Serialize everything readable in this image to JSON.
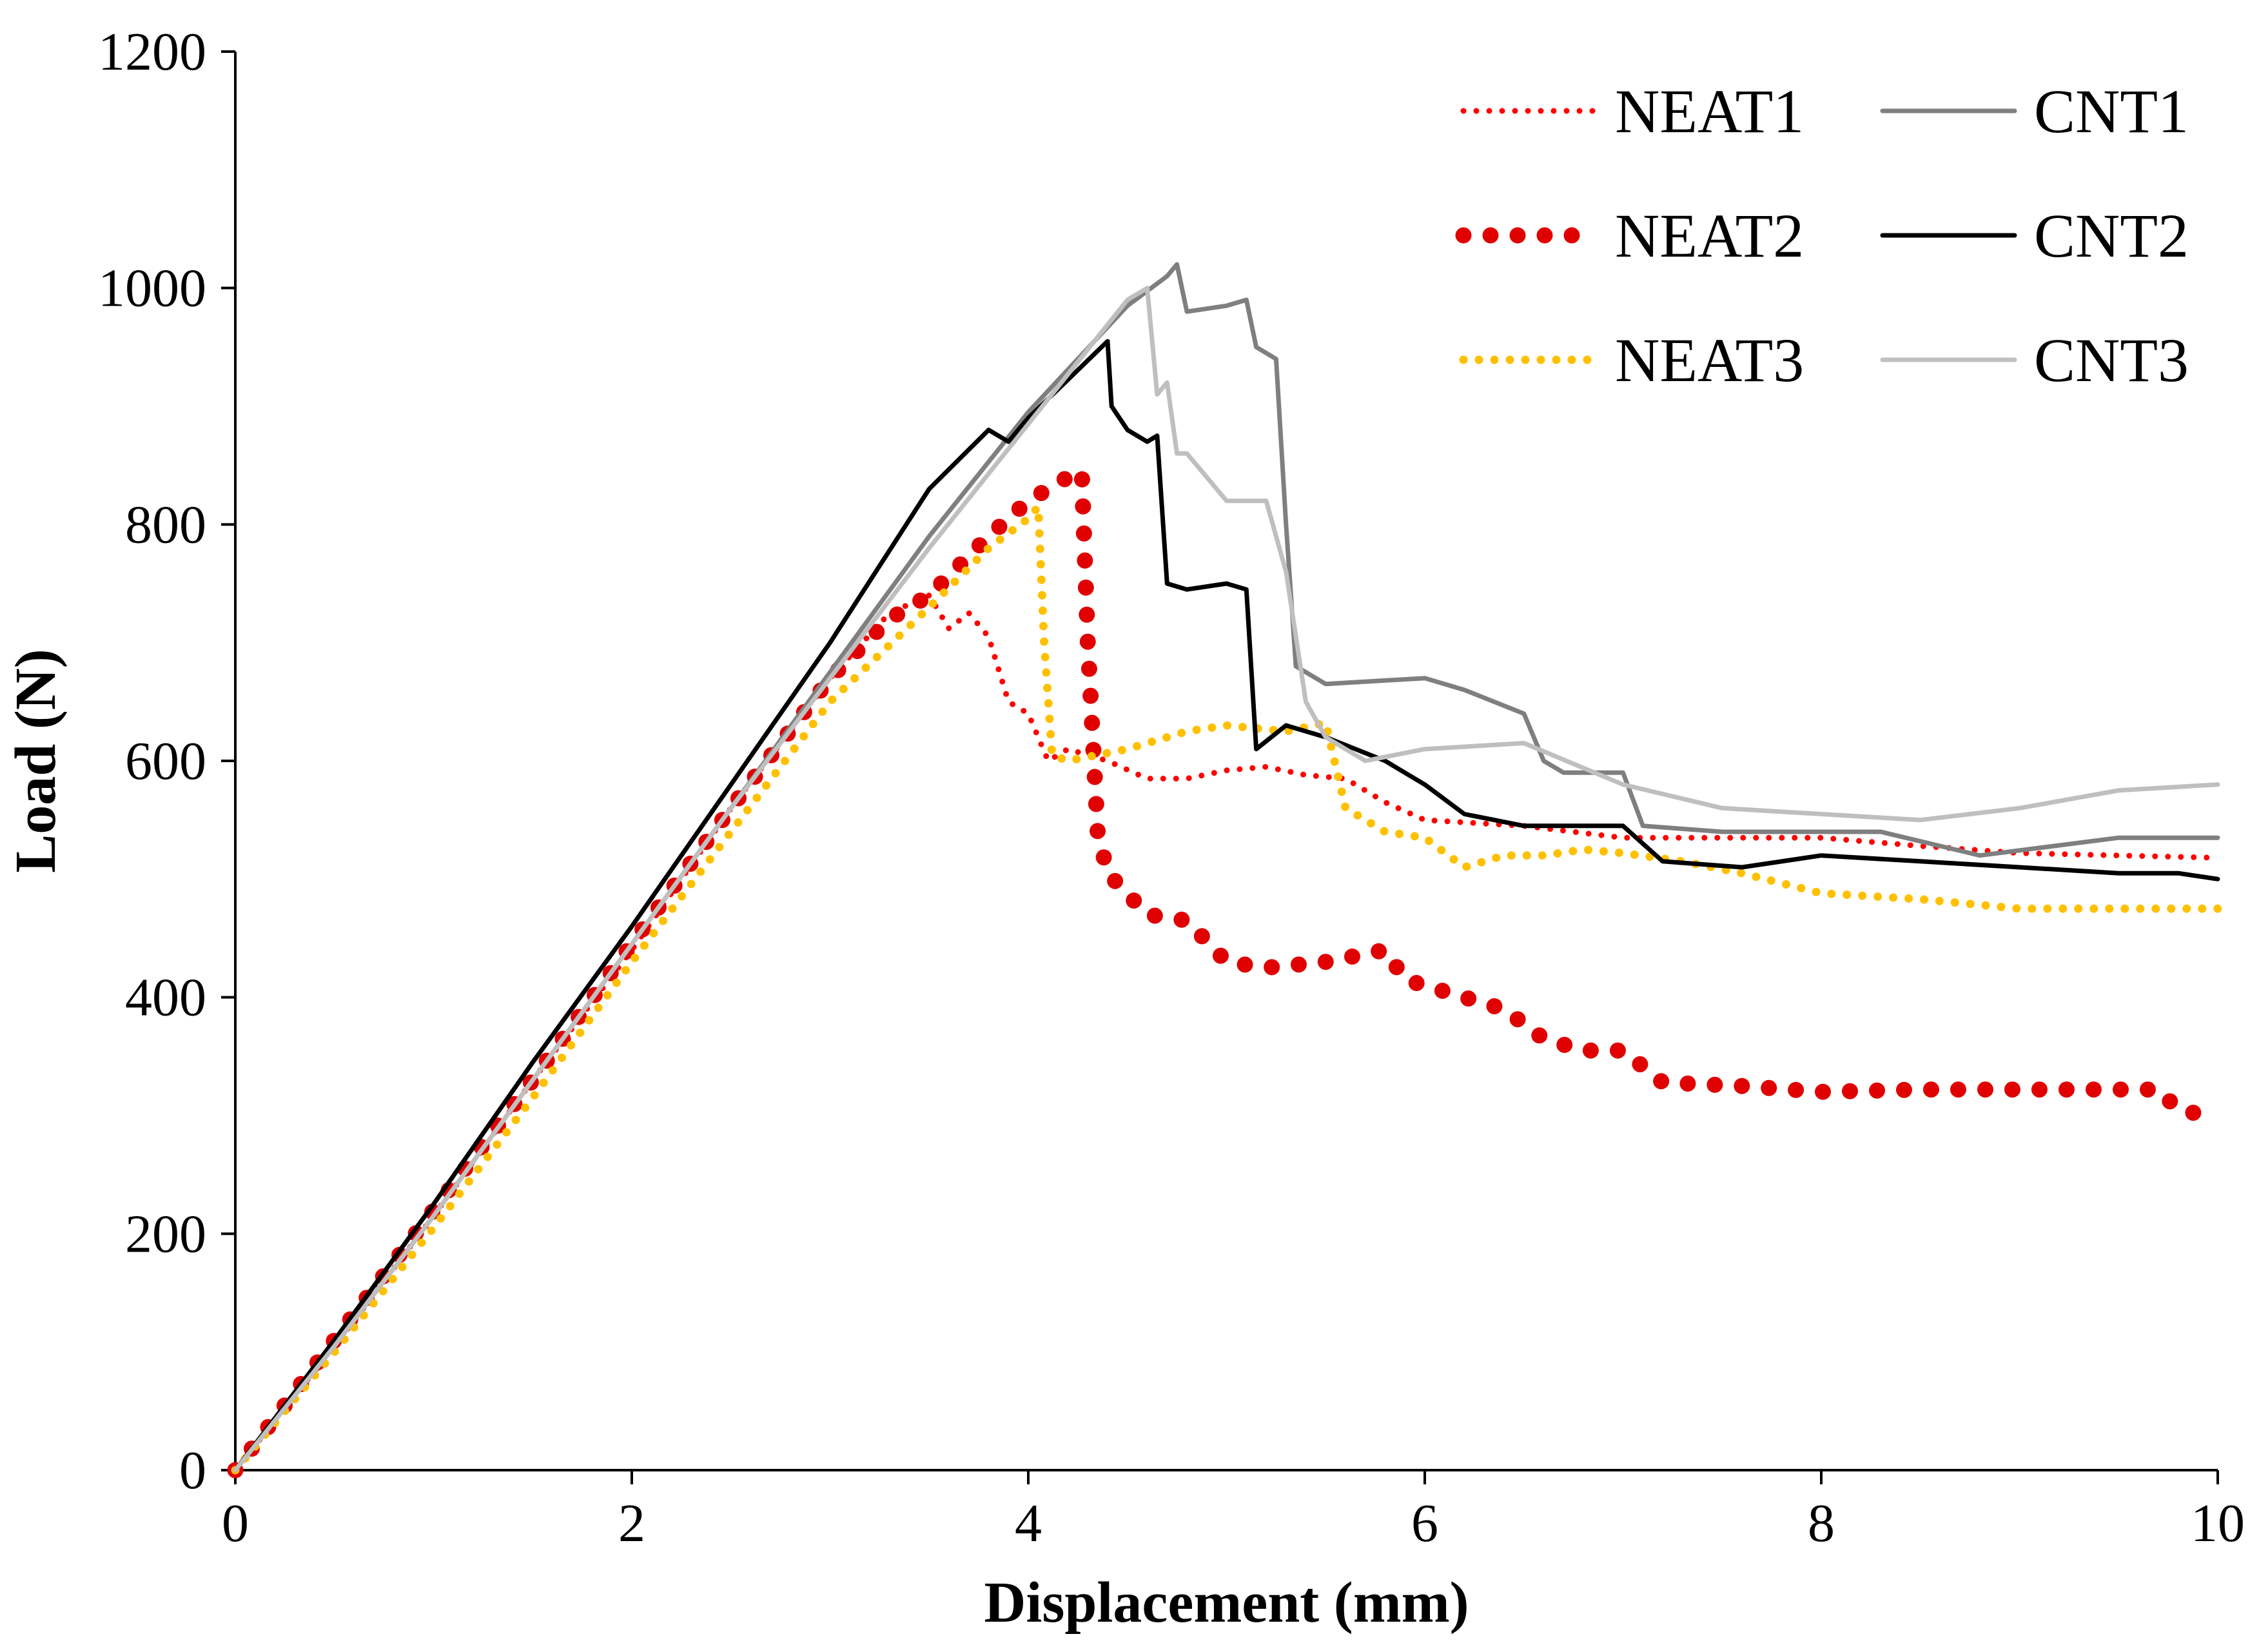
{
  "chart_data": {
    "type": "line",
    "title": "",
    "xlabel": "Displacement (mm)",
    "ylabel": "Load (N)",
    "xlim": [
      0,
      10
    ],
    "ylim": [
      0,
      1200
    ],
    "xticks": [
      0,
      2,
      4,
      6,
      8,
      10
    ],
    "yticks": [
      0,
      200,
      400,
      600,
      800,
      1000,
      1200
    ],
    "grid": false,
    "legend_position": "top-right",
    "series": [
      {
        "name": "NEAT1",
        "color": "#ff0000",
        "style": "dot-small",
        "x": [
          0,
          0.5,
          1,
          1.5,
          2,
          2.5,
          3,
          3.3,
          3.5,
          3.6,
          3.7,
          3.8,
          3.9,
          4.0,
          4.1,
          4.2,
          4.4,
          4.6,
          4.8,
          5.0,
          5.2,
          5.4,
          5.6,
          5.8,
          6.0,
          6.5,
          7.0,
          7.5,
          8.0,
          8.5,
          9.0,
          9.5,
          10.0
        ],
        "y": [
          0,
          105,
          215,
          330,
          440,
          560,
          670,
          725,
          740,
          712,
          725,
          705,
          650,
          640,
          600,
          610,
          600,
          585,
          585,
          592,
          595,
          588,
          585,
          565,
          550,
          545,
          535,
          535,
          535,
          528,
          522,
          520,
          518
        ]
      },
      {
        "name": "NEAT2",
        "color": "#e00000",
        "style": "dot-large",
        "x": [
          0,
          0.5,
          1,
          1.5,
          2,
          2.5,
          3,
          3.3,
          3.5,
          3.8,
          4.0,
          4.2,
          4.27,
          4.3,
          4.35,
          4.4,
          4.6,
          4.8,
          5.0,
          5.2,
          5.5,
          5.8,
          5.9,
          6.2,
          6.4,
          6.6,
          6.8,
          7.0,
          7.2,
          7.6,
          8.0,
          8.5,
          9.0,
          9.7,
          9.8,
          10.0
        ],
        "y": [
          0,
          110,
          220,
          330,
          445,
          560,
          670,
          720,
          740,
          790,
          820,
          840,
          845,
          700,
          540,
          505,
          470,
          465,
          430,
          425,
          430,
          440,
          415,
          400,
          390,
          365,
          355,
          355,
          328,
          325,
          320,
          322,
          322,
          322,
          305,
          298
        ]
      },
      {
        "name": "NEAT3",
        "color": "#ffc000",
        "style": "dot-medium",
        "x": [
          0,
          0.5,
          1,
          1.5,
          2,
          2.5,
          3,
          3.5,
          3.8,
          4.0,
          4.05,
          4.08,
          4.12,
          4.2,
          4.5,
          4.8,
          5.0,
          5.3,
          5.5,
          5.6,
          5.8,
          6.0,
          6.2,
          6.4,
          6.6,
          6.8,
          7.0,
          7.3,
          7.6,
          8.0,
          8.5,
          9.0,
          9.5,
          10.0
        ],
        "y": [
          0,
          100,
          205,
          315,
          430,
          540,
          650,
          730,
          780,
          805,
          815,
          700,
          605,
          600,
          610,
          625,
          630,
          625,
          632,
          560,
          540,
          535,
          510,
          520,
          520,
          525,
          522,
          515,
          505,
          488,
          483,
          475,
          475,
          475
        ]
      },
      {
        "name": "CNT1",
        "color": "#7f7f7f",
        "style": "solid",
        "x": [
          0,
          0.5,
          1,
          1.5,
          2,
          2.5,
          3,
          3.5,
          4.0,
          4.5,
          4.7,
          4.75,
          4.8,
          5.0,
          5.1,
          5.15,
          5.25,
          5.3,
          5.35,
          5.5,
          6.0,
          6.2,
          6.5,
          6.6,
          6.7,
          7.0,
          7.1,
          7.5,
          8.0,
          8.3,
          8.8,
          9.5,
          10.0
        ],
        "y": [
          0,
          105,
          215,
          330,
          445,
          560,
          675,
          790,
          895,
          985,
          1010,
          1020,
          980,
          985,
          990,
          950,
          940,
          800,
          680,
          665,
          670,
          660,
          640,
          600,
          590,
          590,
          545,
          540,
          540,
          540,
          520,
          535,
          535
        ]
      },
      {
        "name": "CNT2",
        "color": "#000000",
        "style": "solid",
        "x": [
          0,
          0.5,
          1,
          1.5,
          2,
          2.5,
          3,
          3.5,
          3.8,
          3.9,
          4.0,
          4.4,
          4.42,
          4.5,
          4.6,
          4.65,
          4.7,
          4.8,
          5.0,
          5.1,
          5.15,
          5.3,
          5.5,
          5.8,
          6.0,
          6.2,
          6.5,
          7.0,
          7.2,
          7.6,
          8.0,
          8.5,
          9.0,
          9.5,
          9.8,
          10.0
        ],
        "y": [
          0,
          110,
          225,
          345,
          460,
          580,
          700,
          830,
          880,
          870,
          890,
          955,
          900,
          880,
          870,
          875,
          750,
          745,
          750,
          745,
          610,
          630,
          620,
          600,
          580,
          555,
          545,
          545,
          515,
          510,
          520,
          515,
          510,
          505,
          505,
          500
        ]
      },
      {
        "name": "CNT3",
        "color": "#bfbfbf",
        "style": "solid",
        "x": [
          0,
          0.5,
          1,
          1.5,
          2,
          2.5,
          3,
          3.5,
          4.0,
          4.5,
          4.6,
          4.65,
          4.7,
          4.75,
          4.8,
          4.9,
          5.0,
          5.2,
          5.3,
          5.4,
          5.5,
          5.7,
          6.0,
          6.5,
          7.0,
          7.5,
          8.0,
          8.5,
          9.0,
          9.5,
          10.0
        ],
        "y": [
          0,
          105,
          215,
          330,
          445,
          560,
          670,
          780,
          885,
          990,
          1000,
          910,
          920,
          860,
          860,
          840,
          820,
          820,
          760,
          650,
          620,
          600,
          610,
          615,
          580,
          560,
          555,
          550,
          560,
          575,
          580
        ]
      }
    ]
  }
}
